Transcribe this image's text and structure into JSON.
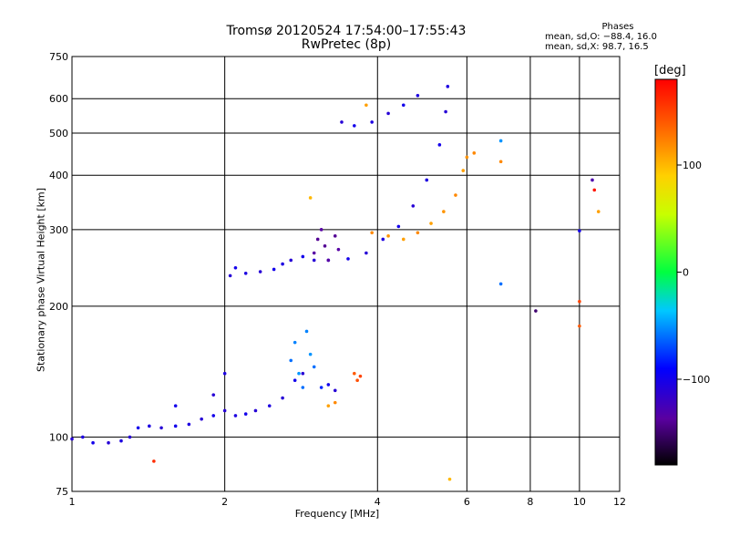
{
  "header": {
    "title_line1": "Tromsø 20120524 17:54:00–17:55:43",
    "title_line2": "RwPretec (8p)",
    "phases_heading": "Phases",
    "phases_line1": "mean, sd,O: −88.4, 16.0",
    "phases_line2": "mean, sd,X:  98.7, 16.5"
  },
  "colorbar": {
    "unit": "[deg]",
    "ticks": [
      "100",
      "0",
      "−100"
    ],
    "tick_values": [
      100,
      0,
      -100
    ],
    "range": [
      -180,
      180
    ]
  },
  "chart_data": {
    "type": "scatter",
    "title": "Tromsø 20120524 17:54:00–17:55:43",
    "subtitle": "RwPretec (8p)",
    "xlabel": "Frequency [MHz]",
    "ylabel": "Stationary phase Virtual Height [km]",
    "x_scale": "log",
    "y_scale": "log",
    "xlim": [
      1,
      12
    ],
    "ylim": [
      75,
      750
    ],
    "x_ticks": [
      1,
      2,
      4,
      6,
      8,
      10,
      12
    ],
    "x_tick_labels": [
      "1",
      "2",
      "4",
      "6",
      "8",
      "10",
      "12"
    ],
    "y_ticks": [
      75,
      100,
      200,
      300,
      400,
      500,
      600,
      750
    ],
    "y_tick_labels": [
      "75",
      "100",
      "200",
      "300",
      "400",
      "500",
      "600",
      "750"
    ],
    "grid": true,
    "color_axis": "phase [deg]",
    "series": [
      {
        "values": [
          [
            1.0,
            99,
            -110
          ],
          [
            1.05,
            100,
            -105
          ],
          [
            1.1,
            97,
            -100
          ],
          [
            1.18,
            97,
            -110
          ],
          [
            1.25,
            98,
            -105
          ],
          [
            1.3,
            100,
            -110
          ],
          [
            1.35,
            105,
            -100
          ],
          [
            1.42,
            106,
            -105
          ],
          [
            1.5,
            105,
            -110
          ],
          [
            1.6,
            106,
            -100
          ],
          [
            1.7,
            107,
            -105
          ],
          [
            1.8,
            110,
            -110
          ],
          [
            1.9,
            112,
            -100
          ],
          [
            2.0,
            115,
            -110
          ],
          [
            2.1,
            112,
            -105
          ],
          [
            2.2,
            113,
            -100
          ],
          [
            2.3,
            115,
            -110
          ],
          [
            2.45,
            118,
            -105
          ],
          [
            2.6,
            123,
            -110
          ],
          [
            2.75,
            135,
            -100
          ],
          [
            2.85,
            140,
            -110
          ],
          [
            1.9,
            125,
            -110
          ],
          [
            2.0,
            140,
            -105
          ],
          [
            1.6,
            118,
            -100
          ]
        ]
      },
      {
        "values": [
          [
            2.05,
            235,
            -110
          ],
          [
            2.1,
            245,
            -100
          ],
          [
            2.2,
            238,
            -105
          ],
          [
            2.35,
            240,
            -110
          ],
          [
            2.5,
            243,
            -100
          ],
          [
            2.6,
            250,
            -105
          ],
          [
            2.7,
            255,
            -110
          ],
          [
            2.85,
            260,
            -100
          ],
          [
            3.0,
            255,
            -110
          ],
          [
            3.2,
            255,
            -105
          ],
          [
            3.5,
            257,
            -100
          ],
          [
            3.8,
            265,
            -110
          ],
          [
            4.1,
            285,
            -105
          ],
          [
            4.4,
            305,
            -100
          ],
          [
            4.7,
            340,
            -110
          ],
          [
            5.0,
            390,
            -105
          ],
          [
            5.3,
            470,
            -100
          ],
          [
            5.45,
            560,
            -110
          ],
          [
            5.5,
            640,
            -105
          ]
        ]
      },
      {
        "values": [
          [
            3.0,
            265,
            -135
          ],
          [
            3.05,
            285,
            -140
          ],
          [
            3.1,
            300,
            -135
          ],
          [
            3.15,
            275,
            -140
          ],
          [
            3.2,
            255,
            -135
          ],
          [
            3.3,
            290,
            -140
          ],
          [
            3.35,
            270,
            -135
          ]
        ]
      },
      {
        "values": [
          [
            3.9,
            295,
            120
          ],
          [
            4.2,
            290,
            115
          ],
          [
            4.5,
            285,
            110
          ],
          [
            4.8,
            295,
            120
          ],
          [
            5.1,
            310,
            110
          ],
          [
            5.4,
            330,
            115
          ],
          [
            5.7,
            360,
            120
          ],
          [
            5.9,
            410,
            110
          ],
          [
            6.0,
            440,
            115
          ]
        ]
      },
      {
        "values": [
          [
            3.4,
            530,
            -110
          ],
          [
            3.6,
            520,
            -100
          ],
          [
            3.9,
            530,
            -105
          ],
          [
            4.2,
            555,
            -110
          ],
          [
            4.5,
            580,
            -100
          ],
          [
            4.8,
            610,
            -105
          ]
        ]
      },
      {
        "values": [
          [
            2.7,
            150,
            -60
          ],
          [
            2.75,
            165,
            -55
          ],
          [
            2.8,
            140,
            -50
          ],
          [
            2.85,
            130,
            -60
          ],
          [
            2.9,
            175,
            -55
          ],
          [
            2.95,
            155,
            -50
          ],
          [
            3.0,
            145,
            -60
          ],
          [
            3.1,
            130,
            -80
          ],
          [
            3.2,
            132,
            -100
          ],
          [
            3.3,
            128,
            -110
          ]
        ]
      },
      {
        "values": [
          [
            3.6,
            140,
            140
          ],
          [
            3.65,
            135,
            145
          ],
          [
            3.7,
            138,
            150
          ],
          [
            3.3,
            120,
            120
          ],
          [
            3.2,
            118,
            110
          ]
        ]
      },
      {
        "values": [
          [
            7.0,
            225,
            -60
          ],
          [
            7.0,
            480,
            -50
          ],
          [
            7.0,
            430,
            120
          ],
          [
            8.2,
            195,
            -150
          ],
          [
            10.0,
            298,
            -100
          ],
          [
            10.0,
            205,
            150
          ],
          [
            10.0,
            180,
            140
          ],
          [
            10.6,
            390,
            -130
          ],
          [
            10.7,
            370,
            170
          ],
          [
            10.9,
            330,
            110
          ],
          [
            5.55,
            80,
            100
          ],
          [
            6.2,
            450,
            120
          ],
          [
            1.45,
            88,
            160
          ],
          [
            2.95,
            355,
            100
          ],
          [
            3.8,
            580,
            110
          ]
        ]
      }
    ]
  }
}
